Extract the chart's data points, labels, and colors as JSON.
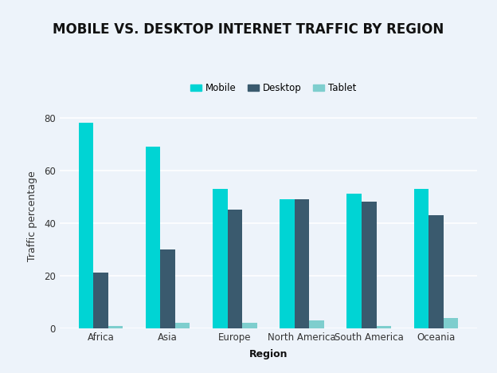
{
  "title": "MOBILE VS. DESKTOP INTERNET TRAFFIC BY REGION",
  "xlabel": "Region",
  "ylabel": "Traffic percentage",
  "categories": [
    "Africa",
    "Asia",
    "Europe",
    "North America",
    "South America",
    "Oceania"
  ],
  "series": {
    "Mobile": [
      78,
      69,
      53,
      49,
      51,
      53
    ],
    "Desktop": [
      21,
      30,
      45,
      49,
      48,
      43
    ],
    "Tablet": [
      1,
      2,
      2,
      3,
      1,
      4
    ]
  },
  "colors": {
    "Mobile": "#00d4d4",
    "Desktop": "#3a5a6e",
    "Tablet": "#7ecece"
  },
  "ylim": [
    0,
    85
  ],
  "yticks": [
    0,
    20,
    40,
    60,
    80
  ],
  "background_color": "#edf3fa",
  "legend_labels": [
    "Mobile",
    "Desktop",
    "Tablet"
  ],
  "bar_width": 0.22,
  "title_fontsize": 12,
  "axis_label_fontsize": 9,
  "tick_fontsize": 8.5,
  "legend_fontsize": 8.5
}
